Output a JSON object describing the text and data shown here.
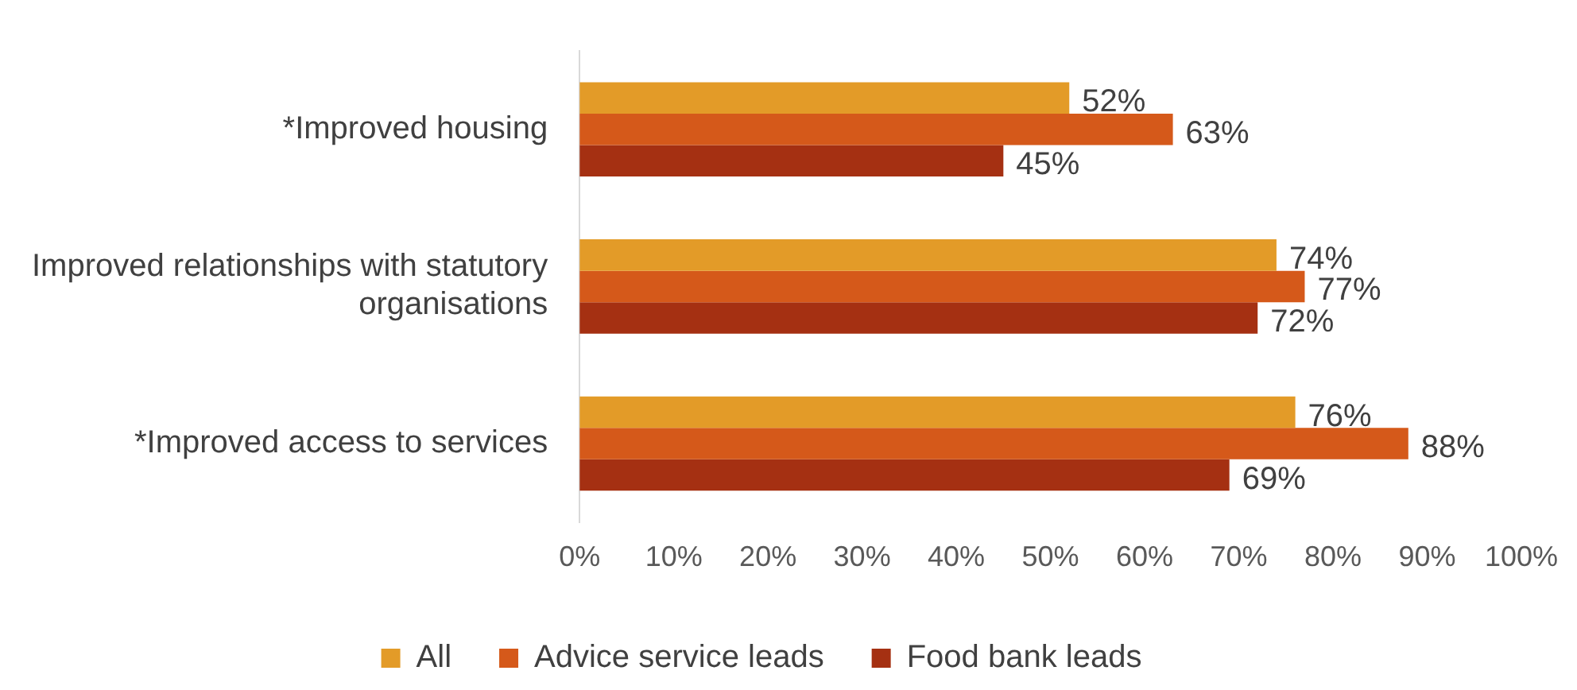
{
  "chart_data": {
    "type": "bar",
    "orientation": "horizontal",
    "categories": [
      "*Improved housing",
      "Improved relationships with statutory organisations",
      "*Improved access to services"
    ],
    "series": [
      {
        "name": "All",
        "color": "#e39b28",
        "values": [
          52,
          74,
          76
        ],
        "value_labels": [
          "52%",
          "74%",
          "76%"
        ]
      },
      {
        "name": "Advice service leads",
        "color": "#d5591a",
        "values": [
          63,
          77,
          88
        ],
        "value_labels": [
          "63%",
          "77%",
          "88%"
        ]
      },
      {
        "name": "Food bank leads",
        "color": "#a53012",
        "values": [
          45,
          72,
          69
        ],
        "value_labels": [
          "45%",
          "72%",
          "69%"
        ]
      }
    ],
    "xlim": [
      0,
      100
    ],
    "xticks": [
      {
        "value": 0,
        "label": "0%"
      },
      {
        "value": 10,
        "label": "10%"
      },
      {
        "value": 20,
        "label": "20%"
      },
      {
        "value": 30,
        "label": "30%"
      },
      {
        "value": 40,
        "label": "40%"
      },
      {
        "value": 50,
        "label": "50%"
      },
      {
        "value": 60,
        "label": "60%"
      },
      {
        "value": 70,
        "label": "70%"
      },
      {
        "value": 80,
        "label": "80%"
      },
      {
        "value": 90,
        "label": "90%"
      },
      {
        "value": 100,
        "label": "100%"
      }
    ],
    "grid": false,
    "legend": "bottom"
  }
}
